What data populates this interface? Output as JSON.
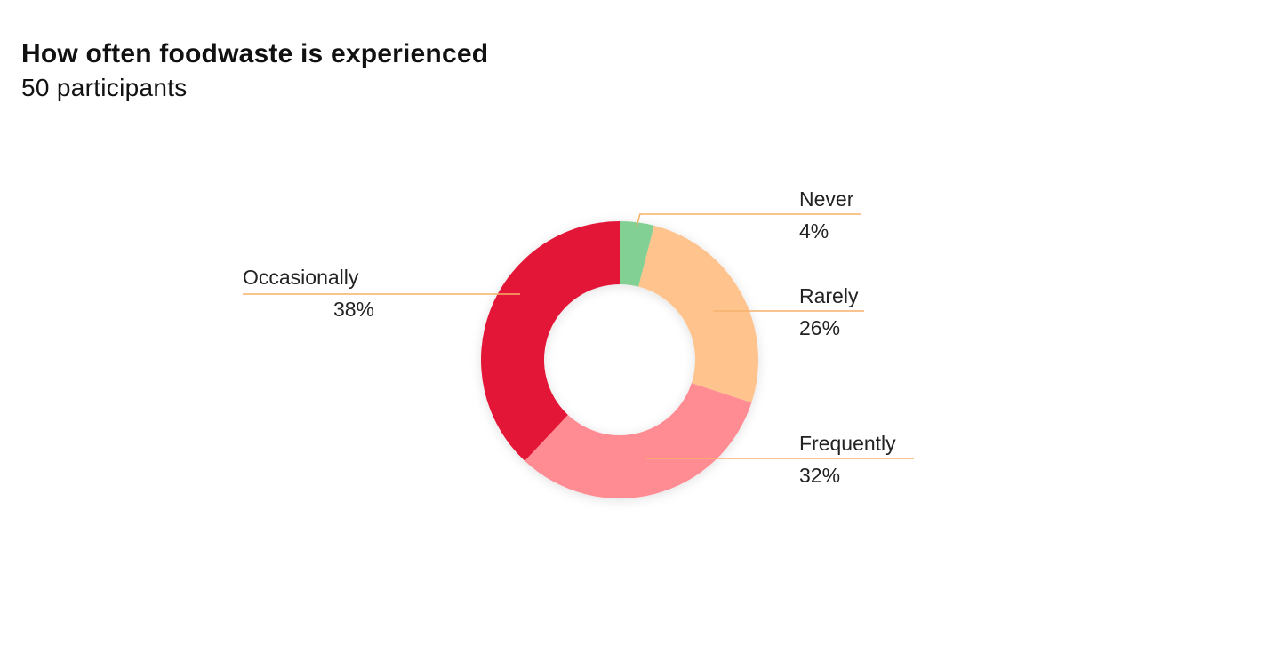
{
  "header": {
    "title": "How often foodwaste is experienced",
    "subtitle": "50 participants"
  },
  "chart_data": {
    "type": "pie",
    "variant": "donut",
    "title": "How often foodwaste is experienced",
    "subtitle": "50 participants",
    "slices": [
      {
        "label": "Never",
        "value": 4,
        "display": "4%",
        "color": "#82d093"
      },
      {
        "label": "Rarely",
        "value": 26,
        "display": "26%",
        "color": "#ffc38e"
      },
      {
        "label": "Frequently",
        "value": 32,
        "display": "32%",
        "color": "#ff8b93"
      },
      {
        "label": "Occasionally",
        "value": 38,
        "display": "38%",
        "color": "#e31837"
      }
    ],
    "leader_color": "#f5b26b",
    "legend": "none"
  }
}
